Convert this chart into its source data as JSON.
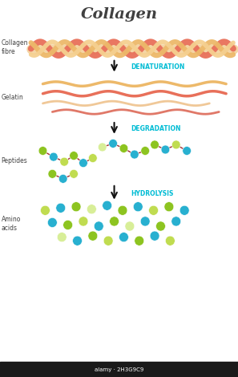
{
  "title": "Collagen",
  "title_fontsize": 14,
  "title_fontweight": "bold",
  "bg_color": "#ffffff",
  "label_color": "#404040",
  "cyan_color": "#00BCD4",
  "arrow_color": "#111111",
  "labels": {
    "collagen_fibre": "Collagen\nfibre",
    "gelatin": "Gelatin",
    "peptides": "Peptides",
    "amino_acids": "Amino\nacids"
  },
  "process_labels": {
    "denaturation": "DENATURATION",
    "degradation": "DEGRADATION",
    "hydrolysis": "HYDROLYSIS"
  },
  "colors": {
    "fibre_orange": "#EDB96A",
    "fibre_salmon": "#E8705A",
    "fibre_light": "#F5D090",
    "gelatin_orange": "#EDAA70",
    "gelatin_salmon": "#E07868",
    "gelatin_light": "#F0C898",
    "bead_green": "#8DC420",
    "bead_green_light": "#C0DC50",
    "bead_green_pale": "#D8EE98",
    "bead_cyan": "#28B0D0",
    "bead_dark_red": "#A03030",
    "bead_white_green": "#D8ECA0"
  },
  "watermark": "alamy · 2H3G9C9",
  "watermark_bg": "#1a1a1a",
  "watermark_color": "#ffffff"
}
